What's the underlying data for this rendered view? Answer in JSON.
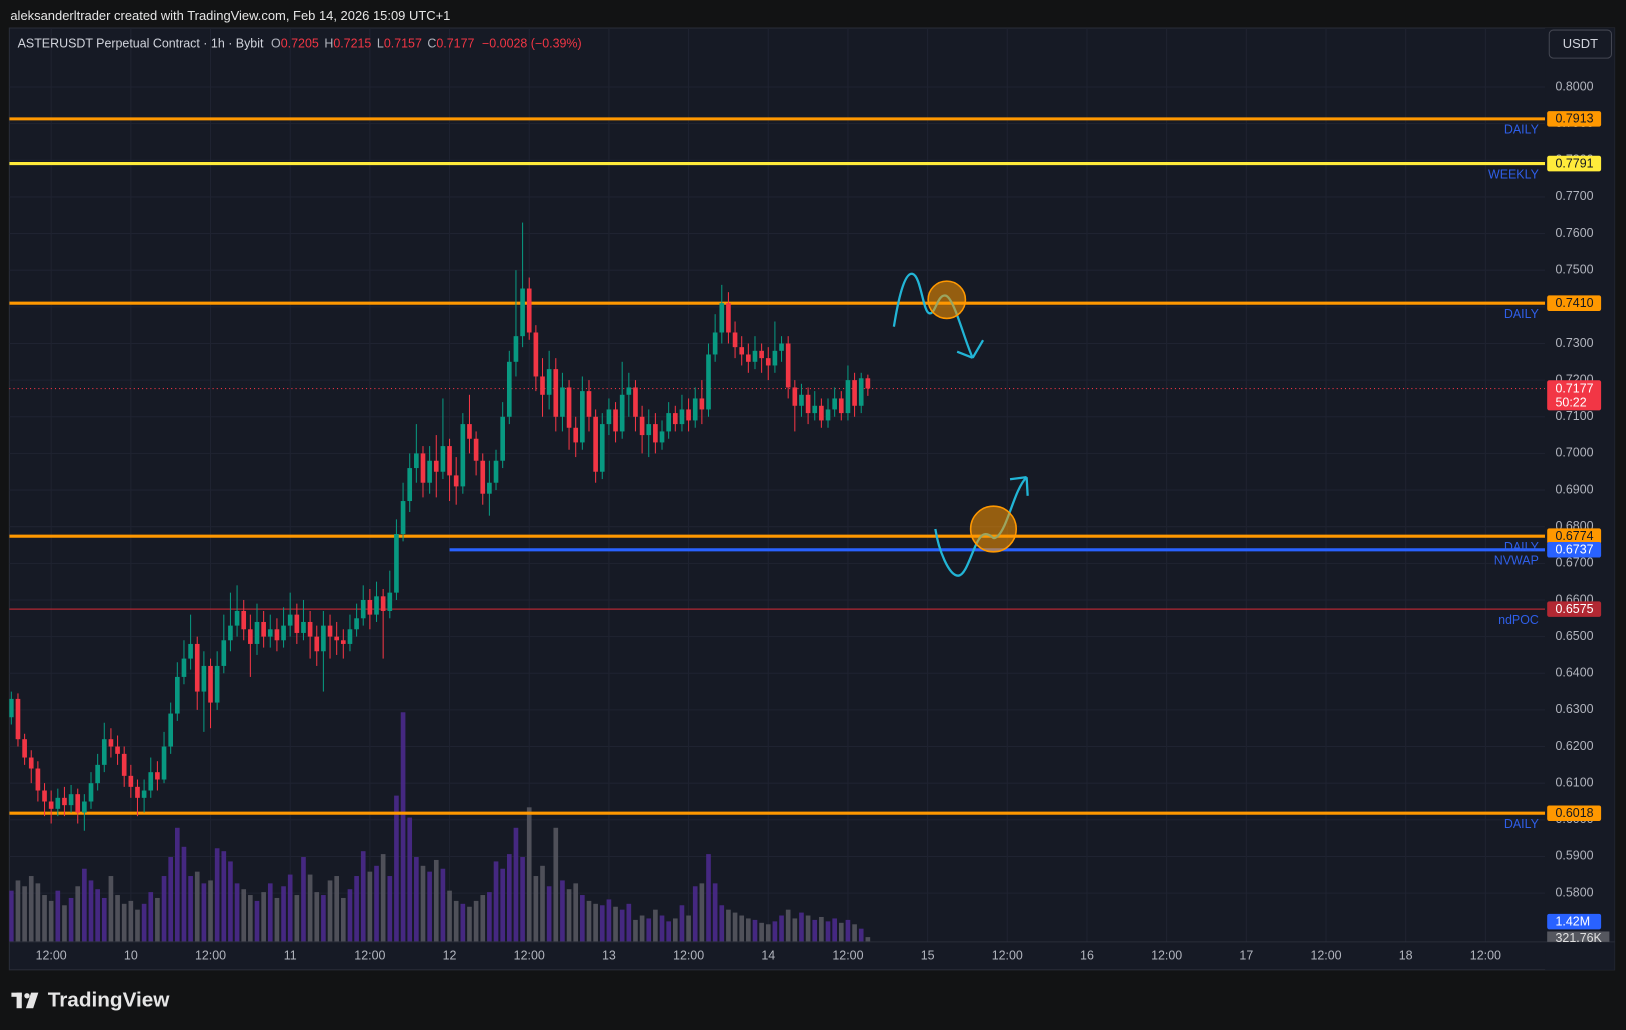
{
  "header": {
    "attribution": "aleksanderltrader created with TradingView.com, Feb 14, 2026 15:09 UTC+1",
    "brand": "TradingView"
  },
  "chart_data": {
    "type": "candlestick",
    "title": "ASTERUSDT Perpetual Contract · 1h · Bybit",
    "ohlc_labels": [
      "O",
      "H",
      "L",
      "C"
    ],
    "change_label": "−0.0028 (−0.39%)",
    "currency": "USDT",
    "countdown": "50:22",
    "colors": {
      "up": "#089981",
      "down": "#f23645",
      "volume_up": "#4a2a8c",
      "volume_down": "#55575f",
      "level_label": "#2f5fe8"
    },
    "grid": true,
    "xlim": [
      5.7,
      237
    ],
    "xticks": [
      {
        "value": 12,
        "label": "12:00"
      },
      {
        "value": 24,
        "label": "10"
      },
      {
        "value": 36,
        "label": "12:00"
      },
      {
        "value": 48,
        "label": "11"
      },
      {
        "value": 60,
        "label": "12:00"
      },
      {
        "value": 72,
        "label": "12"
      },
      {
        "value": 84,
        "label": "12:00"
      },
      {
        "value": 96,
        "label": "13"
      },
      {
        "value": 108,
        "label": "12:00"
      },
      {
        "value": 120,
        "label": "14"
      },
      {
        "value": 132,
        "label": "12:00"
      },
      {
        "value": 144,
        "label": "15"
      },
      {
        "value": 156,
        "label": "12:00"
      },
      {
        "value": 168,
        "label": "16"
      },
      {
        "value": 180,
        "label": "12:00"
      },
      {
        "value": 192,
        "label": "17"
      },
      {
        "value": 204,
        "label": "12:00"
      },
      {
        "value": 216,
        "label": "18"
      },
      {
        "value": 228,
        "label": "12:00"
      }
    ],
    "ylim": [
      0.5667,
      0.8161
    ],
    "yticks": [
      {
        "value": 0.8,
        "label": "0.8000"
      },
      {
        "value": 0.79,
        "label": "0.7900"
      },
      {
        "value": 0.78,
        "label": "0.7800"
      },
      {
        "value": 0.77,
        "label": "0.7700"
      },
      {
        "value": 0.76,
        "label": "0.7600"
      },
      {
        "value": 0.75,
        "label": "0.7500"
      },
      {
        "value": 0.74,
        "label": "0.7400"
      },
      {
        "value": 0.73,
        "label": "0.7300"
      },
      {
        "value": 0.72,
        "label": "0.7200"
      },
      {
        "value": 0.71,
        "label": "0.7100"
      },
      {
        "value": 0.7,
        "label": "0.7000"
      },
      {
        "value": 0.69,
        "label": "0.6900"
      },
      {
        "value": 0.68,
        "label": "0.6800"
      },
      {
        "value": 0.67,
        "label": "0.6700"
      },
      {
        "value": 0.66,
        "label": "0.6600"
      },
      {
        "value": 0.65,
        "label": "0.6500"
      },
      {
        "value": 0.64,
        "label": "0.6400"
      },
      {
        "value": 0.63,
        "label": "0.6300"
      },
      {
        "value": 0.62,
        "label": "0.6200"
      },
      {
        "value": 0.61,
        "label": "0.6100"
      },
      {
        "value": 0.6,
        "label": "0.6000"
      },
      {
        "value": 0.59,
        "label": "0.5900"
      },
      {
        "value": 0.58,
        "label": "0.5800"
      }
    ],
    "volume_lim": [
      0,
      62.5
    ],
    "volume_ma_label": "1.42M",
    "volume_last_label": "321.76K",
    "levels": [
      {
        "name": "DAILY",
        "price": 0.7913,
        "price_label": "0.7913",
        "color": "#ff9800"
      },
      {
        "name": "WEEKLY",
        "price": 0.7791,
        "price_label": "0.7791",
        "color": "#ffeb3b"
      },
      {
        "name": "DAILY",
        "price": 0.741,
        "price_label": "0.7410",
        "color": "#ff9800"
      },
      {
        "name": "DAILY",
        "price": 0.6774,
        "price_label": "0.6774",
        "color": "#ff9800"
      },
      {
        "name": "NVWAP",
        "price": 0.6737,
        "price_label": "0.6737",
        "color": "#2962ff",
        "x_start": 72
      },
      {
        "name": "ndPOC",
        "price": 0.6575,
        "price_label": "0.6575",
        "color": "#b22833",
        "thin": true
      },
      {
        "name": "DAILY",
        "price": 0.6018,
        "price_label": "0.6018",
        "color": "#ff9800"
      }
    ],
    "x": [
      6,
      7,
      8,
      9,
      10,
      11,
      12,
      13,
      14,
      15,
      16,
      17,
      18,
      19,
      20,
      21,
      22,
      23,
      24,
      25,
      26,
      27,
      28,
      29,
      30,
      31,
      32,
      33,
      34,
      35,
      36,
      37,
      38,
      39,
      40,
      41,
      42,
      43,
      44,
      45,
      46,
      47,
      48,
      49,
      50,
      51,
      52,
      53,
      54,
      55,
      56,
      57,
      58,
      59,
      60,
      61,
      62,
      63,
      64,
      65,
      66,
      67,
      68,
      69,
      70,
      71,
      72,
      73,
      74,
      75,
      76,
      77,
      78,
      79,
      80,
      81,
      82,
      83,
      84,
      85,
      86,
      87,
      88,
      89,
      90,
      91,
      92,
      93,
      94,
      95,
      96,
      97,
      98,
      99,
      100,
      101,
      102,
      103,
      104,
      105,
      106,
      107,
      108,
      109,
      110,
      111,
      112,
      113,
      114,
      115,
      116,
      117,
      118,
      119,
      120,
      121,
      122,
      123,
      124,
      125,
      126,
      127,
      128,
      129,
      130,
      131,
      132,
      133,
      134,
      135
    ],
    "open": [
      0.628,
      0.633,
      0.622,
      0.617,
      0.614,
      0.608,
      0.605,
      0.603,
      0.606,
      0.604,
      0.607,
      0.602,
      0.605,
      0.61,
      0.615,
      0.622,
      0.62,
      0.618,
      0.612,
      0.609,
      0.606,
      0.608,
      0.613,
      0.611,
      0.62,
      0.629,
      0.639,
      0.644,
      0.648,
      0.635,
      0.642,
      0.632,
      0.642,
      0.649,
      0.653,
      0.657,
      0.652,
      0.648,
      0.654,
      0.65,
      0.652,
      0.649,
      0.653,
      0.656,
      0.651,
      0.654,
      0.65,
      0.646,
      0.653,
      0.65,
      0.649,
      0.648,
      0.652,
      0.655,
      0.66,
      0.656,
      0.661,
      0.657,
      0.662,
      0.678,
      0.687,
      0.696,
      0.7,
      0.692,
      0.698,
      0.695,
      0.702,
      0.694,
      0.691,
      0.708,
      0.704,
      0.698,
      0.689,
      0.692,
      0.698,
      0.71,
      0.725,
      0.732,
      0.745,
      0.733,
      0.721,
      0.716,
      0.723,
      0.71,
      0.718,
      0.707,
      0.703,
      0.717,
      0.71,
      0.695,
      0.708,
      0.712,
      0.706,
      0.716,
      0.718,
      0.71,
      0.705,
      0.708,
      0.703,
      0.706,
      0.711,
      0.708,
      0.712,
      0.709,
      0.715,
      0.712,
      0.727,
      0.733,
      0.741,
      0.733,
      0.729,
      0.727,
      0.725,
      0.728,
      0.726,
      0.724,
      0.728,
      0.73,
      0.718,
      0.713,
      0.716,
      0.711,
      0.713,
      0.709,
      0.712,
      0.715,
      0.711,
      0.72,
      0.713,
      0.7205
    ],
    "high": [
      0.635,
      0.6345,
      0.6235,
      0.619,
      0.616,
      0.61,
      0.608,
      0.6085,
      0.609,
      0.6095,
      0.6085,
      0.607,
      0.613,
      0.618,
      0.6265,
      0.625,
      0.623,
      0.62,
      0.615,
      0.611,
      0.611,
      0.617,
      0.616,
      0.624,
      0.632,
      0.643,
      0.649,
      0.656,
      0.65,
      0.646,
      0.644,
      0.646,
      0.656,
      0.662,
      0.664,
      0.66,
      0.656,
      0.659,
      0.657,
      0.656,
      0.655,
      0.658,
      0.662,
      0.659,
      0.66,
      0.657,
      0.653,
      0.657,
      0.656,
      0.654,
      0.652,
      0.656,
      0.659,
      0.664,
      0.663,
      0.665,
      0.663,
      0.668,
      0.682,
      0.692,
      0.7,
      0.708,
      0.702,
      0.702,
      0.705,
      0.715,
      0.704,
      0.699,
      0.711,
      0.716,
      0.706,
      0.7,
      0.698,
      0.701,
      0.714,
      0.728,
      0.75,
      0.763,
      0.748,
      0.735,
      0.726,
      0.728,
      0.726,
      0.722,
      0.72,
      0.71,
      0.721,
      0.72,
      0.712,
      0.711,
      0.715,
      0.714,
      0.725,
      0.722,
      0.72,
      0.713,
      0.712,
      0.711,
      0.709,
      0.714,
      0.713,
      0.716,
      0.715,
      0.718,
      0.72,
      0.73,
      0.738,
      0.746,
      0.744,
      0.736,
      0.732,
      0.73,
      0.732,
      0.73,
      0.729,
      0.736,
      0.732,
      0.732,
      0.72,
      0.719,
      0.718,
      0.717,
      0.715,
      0.715,
      0.718,
      0.717,
      0.724,
      0.722,
      0.722,
      0.7215
    ],
    "low": [
      0.626,
      0.62,
      0.615,
      0.61,
      0.605,
      0.601,
      0.599,
      0.601,
      0.601,
      0.602,
      0.599,
      0.597,
      0.603,
      0.608,
      0.613,
      0.617,
      0.615,
      0.609,
      0.606,
      0.601,
      0.602,
      0.606,
      0.608,
      0.61,
      0.618,
      0.627,
      0.637,
      0.641,
      0.63,
      0.624,
      0.625,
      0.63,
      0.64,
      0.646,
      0.65,
      0.649,
      0.639,
      0.645,
      0.647,
      0.647,
      0.646,
      0.647,
      0.65,
      0.648,
      0.649,
      0.644,
      0.642,
      0.635,
      0.644,
      0.645,
      0.644,
      0.646,
      0.65,
      0.653,
      0.652,
      0.654,
      0.644,
      0.655,
      0.66,
      0.676,
      0.684,
      0.692,
      0.688,
      0.689,
      0.688,
      0.693,
      0.687,
      0.686,
      0.689,
      0.7,
      0.694,
      0.686,
      0.683,
      0.69,
      0.696,
      0.708,
      0.721,
      0.729,
      0.731,
      0.717,
      0.71,
      0.712,
      0.706,
      0.706,
      0.701,
      0.699,
      0.701,
      0.706,
      0.692,
      0.693,
      0.705,
      0.703,
      0.704,
      0.71,
      0.706,
      0.7,
      0.699,
      0.7,
      0.701,
      0.704,
      0.706,
      0.706,
      0.706,
      0.707,
      0.708,
      0.71,
      0.725,
      0.73,
      0.73,
      0.726,
      0.724,
      0.722,
      0.723,
      0.722,
      0.72,
      0.722,
      0.725,
      0.715,
      0.706,
      0.71,
      0.708,
      0.709,
      0.707,
      0.707,
      0.71,
      0.709,
      0.709,
      0.71,
      0.711,
      0.7157
    ],
    "close": [
      0.633,
      0.622,
      0.617,
      0.614,
      0.608,
      0.605,
      0.603,
      0.606,
      0.604,
      0.607,
      0.602,
      0.605,
      0.61,
      0.615,
      0.622,
      0.62,
      0.618,
      0.612,
      0.609,
      0.606,
      0.608,
      0.613,
      0.611,
      0.62,
      0.629,
      0.639,
      0.644,
      0.648,
      0.635,
      0.642,
      0.632,
      0.642,
      0.649,
      0.653,
      0.657,
      0.652,
      0.648,
      0.654,
      0.65,
      0.652,
      0.649,
      0.653,
      0.656,
      0.651,
      0.654,
      0.65,
      0.646,
      0.653,
      0.65,
      0.649,
      0.648,
      0.652,
      0.655,
      0.66,
      0.656,
      0.661,
      0.657,
      0.662,
      0.678,
      0.687,
      0.696,
      0.7,
      0.692,
      0.698,
      0.695,
      0.702,
      0.694,
      0.691,
      0.708,
      0.704,
      0.698,
      0.689,
      0.692,
      0.698,
      0.71,
      0.725,
      0.732,
      0.745,
      0.733,
      0.721,
      0.716,
      0.723,
      0.71,
      0.718,
      0.707,
      0.703,
      0.717,
      0.71,
      0.695,
      0.708,
      0.712,
      0.706,
      0.716,
      0.718,
      0.71,
      0.705,
      0.708,
      0.703,
      0.706,
      0.711,
      0.708,
      0.712,
      0.709,
      0.715,
      0.712,
      0.727,
      0.733,
      0.741,
      0.733,
      0.729,
      0.727,
      0.725,
      0.728,
      0.726,
      0.724,
      0.728,
      0.73,
      0.718,
      0.713,
      0.716,
      0.711,
      0.713,
      0.709,
      0.712,
      0.715,
      0.711,
      0.72,
      0.713,
      0.7205,
      0.7177
    ],
    "volume": [
      3.5,
      4.2,
      3.8,
      4.5,
      4.0,
      3.2,
      2.8,
      3.5,
      2.5,
      3.0,
      3.8,
      5.0,
      4.2,
      3.6,
      3.0,
      4.5,
      3.2,
      2.6,
      2.8,
      2.2,
      2.6,
      3.4,
      3.0,
      4.5,
      5.8,
      7.8,
      6.5,
      4.5,
      4.8,
      4.0,
      4.2,
      6.4,
      6.2,
      5.5,
      4.0,
      3.6,
      3.2,
      2.8,
      3.4,
      4.0,
      3.0,
      3.8,
      4.6,
      3.2,
      5.8,
      4.6,
      3.4,
      3.2,
      4.2,
      4.5,
      3.0,
      3.6,
      4.5,
      6.2,
      4.8,
      5.2,
      6.0,
      4.5,
      10.0,
      15.7,
      8.5,
      5.8,
      5.2,
      4.8,
      5.6,
      5.0,
      3.5,
      2.8,
      2.6,
      2.4,
      2.8,
      3.2,
      3.4,
      5.5,
      5.0,
      6.0,
      7.8,
      5.8,
      9.2,
      4.5,
      5.2,
      3.8,
      7.8,
      4.2,
      3.6,
      4.0,
      3.2,
      2.8,
      2.6,
      2.5,
      2.9,
      2.4,
      2.2,
      2.6,
      1.5,
      1.8,
      1.6,
      2.2,
      1.8,
      1.4,
      1.6,
      2.5,
      1.8,
      3.8,
      4.0,
      6.0,
      4.0,
      2.5,
      2.2,
      2.0,
      1.8,
      1.6,
      1.5,
      1.3,
      1.2,
      1.4,
      1.8,
      2.2,
      1.6,
      2.0,
      1.8,
      1.5,
      1.7,
      1.4,
      1.6,
      1.3,
      1.5,
      1.2,
      0.9,
      0.32176
    ]
  }
}
